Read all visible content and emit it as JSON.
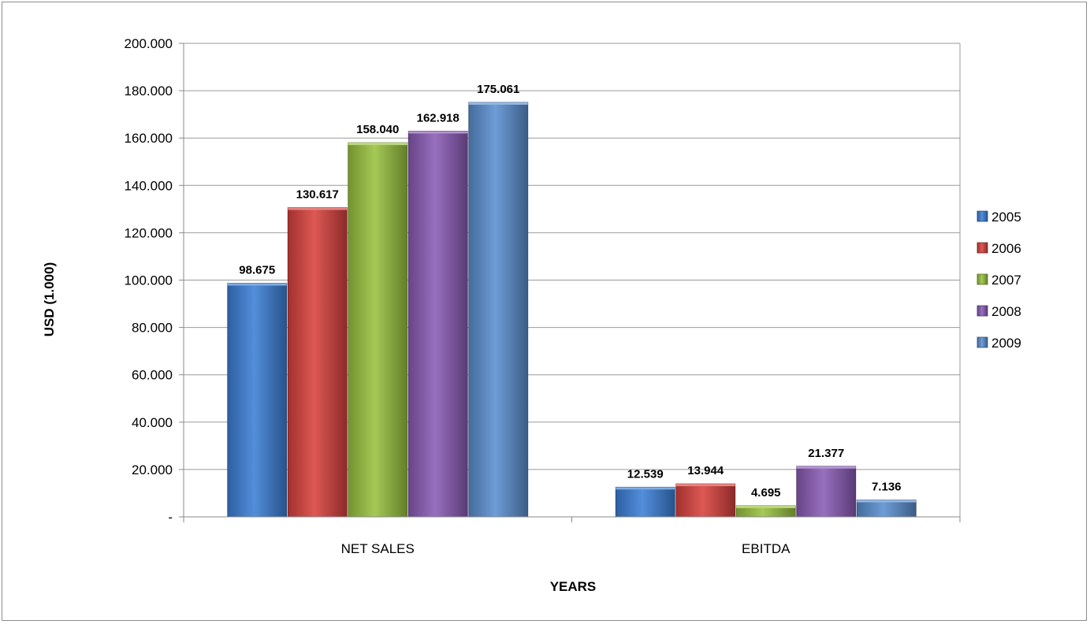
{
  "chart_data": {
    "type": "bar",
    "title": "",
    "xlabel": "YEARS",
    "ylabel": "USD (1.000)",
    "categories": [
      "NET SALES",
      "EBITDA"
    ],
    "series": [
      {
        "name": "2005",
        "values": [
          98675,
          12539
        ],
        "labels": [
          "98.675",
          "12.539"
        ],
        "color": "#3c7fd6"
      },
      {
        "name": "2006",
        "values": [
          130617,
          13944
        ],
        "labels": [
          "130.617",
          "13.944"
        ],
        "color": "#d8413d"
      },
      {
        "name": "2007",
        "values": [
          158040,
          4695
        ],
        "labels": [
          "158.040",
          "4.695"
        ],
        "color": "#99c23f"
      },
      {
        "name": "2008",
        "values": [
          162918,
          21377
        ],
        "labels": [
          "162.918",
          "21.377"
        ],
        "color": "#8a5bb5"
      },
      {
        "name": "2009",
        "values": [
          175061,
          7136
        ],
        "labels": [
          "175.061",
          "7.136"
        ],
        "color": "#5a8fd0"
      }
    ],
    "ylim": [
      0,
      200000
    ],
    "yticks": [
      {
        "value": 0,
        "label": "-"
      },
      {
        "value": 20000,
        "label": "20.000"
      },
      {
        "value": 40000,
        "label": "40.000"
      },
      {
        "value": 60000,
        "label": "60.000"
      },
      {
        "value": 80000,
        "label": "80.000"
      },
      {
        "value": 100000,
        "label": "100.000"
      },
      {
        "value": 120000,
        "label": "120.000"
      },
      {
        "value": 140000,
        "label": "140.000"
      },
      {
        "value": 160000,
        "label": "160.000"
      },
      {
        "value": 180000,
        "label": "180.000"
      },
      {
        "value": 200000,
        "label": "200.000"
      }
    ],
    "grid": true,
    "legend_position": "right"
  }
}
